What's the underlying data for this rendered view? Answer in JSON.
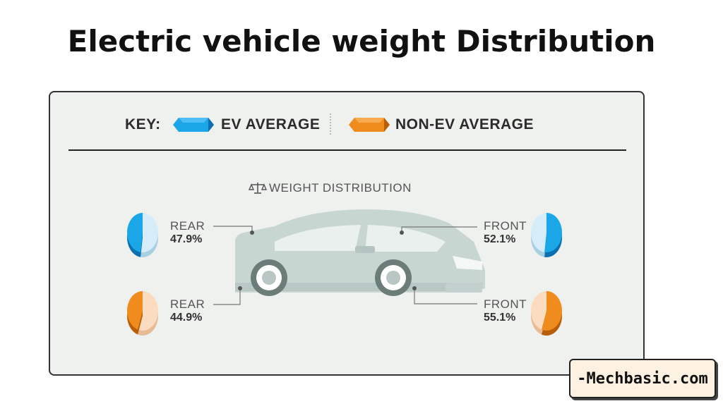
{
  "title": "Electric vehicle weight Distribution",
  "key": {
    "label": "KEY:",
    "ev_label": "EV AVERAGE",
    "non_ev_label": "NON-EV AVERAGE"
  },
  "subtitle": "WEIGHT DISTRIBUTION",
  "colors": {
    "ev": "#1ba6e8",
    "ev_light": "#d6ecf8",
    "non_ev": "#f08c1e",
    "non_ev_light": "#fbdcc0",
    "car": "#c8d6d2"
  },
  "chart_data": {
    "type": "pie",
    "title": "WEIGHT DISTRIBUTION",
    "series": [
      {
        "name": "EV AVERAGE",
        "categories": [
          "REAR",
          "FRONT"
        ],
        "values": [
          47.9,
          52.1
        ],
        "labels": [
          "47.9%",
          "52.1%"
        ]
      },
      {
        "name": "NON-EV AVERAGE",
        "categories": [
          "REAR",
          "FRONT"
        ],
        "values": [
          44.9,
          55.1
        ],
        "labels": [
          "44.9%",
          "55.1%"
        ]
      }
    ]
  },
  "labels": {
    "ev_rear": {
      "name": "REAR",
      "value": "47.9%"
    },
    "ev_front": {
      "name": "FRONT",
      "value": "52.1%"
    },
    "non_ev_rear": {
      "name": "REAR",
      "value": "44.9%"
    },
    "non_ev_front": {
      "name": "FRONT",
      "value": "55.1%"
    }
  },
  "watermark": "-Mechbasic.com"
}
